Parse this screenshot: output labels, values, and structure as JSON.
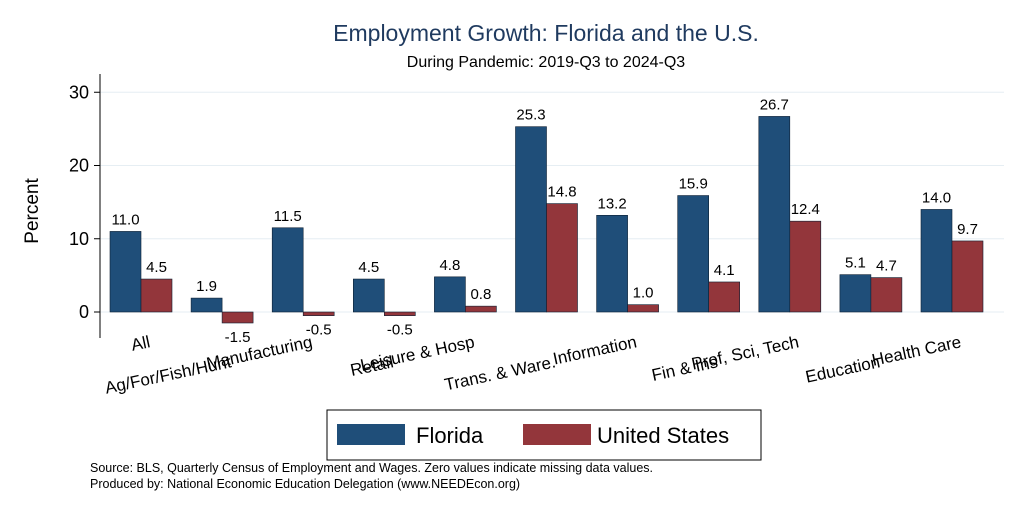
{
  "chart_data": {
    "type": "bar",
    "title": "Employment Growth: Florida and the U.S.",
    "subtitle": "During Pandemic: 2019-Q3 to 2024-Q3",
    "ylabel": "Percent",
    "xlabel": "",
    "ylim": [
      -3,
      32.5
    ],
    "yticks": [
      0,
      10,
      20,
      30
    ],
    "grid": true,
    "legend_position": "bottom",
    "categories": [
      "All",
      "Ag/For/Fish/Hunt",
      "Manufacturing",
      "Retail",
      "Leisure & Hosp",
      "Trans. & Ware.",
      "Information",
      "Fin & Ins",
      "Prof, Sci, Tech",
      "Education",
      "Health Care"
    ],
    "series": [
      {
        "name": "Florida",
        "color": "#1f4e79",
        "values": [
          11.0,
          1.9,
          11.5,
          4.5,
          4.8,
          25.3,
          13.2,
          15.9,
          26.7,
          5.1,
          14.0
        ],
        "labels": [
          "11.0",
          "1.9",
          "11.5",
          "4.5",
          "4.8",
          "25.3",
          "13.2",
          "15.9",
          "26.7",
          "5.1",
          "14.0"
        ]
      },
      {
        "name": "United States",
        "color": "#93363b",
        "values": [
          4.5,
          -1.5,
          -0.5,
          -0.5,
          0.8,
          14.8,
          1.0,
          4.1,
          12.4,
          4.7,
          9.7
        ],
        "labels": [
          "4.5",
          "-1.5",
          "-0.5",
          "-0.5",
          "0.8",
          "14.8",
          "1.0",
          "4.1",
          "12.4",
          "4.7",
          "9.7"
        ]
      }
    ]
  },
  "notes": {
    "source": "Source: BLS, Quarterly Census of Employment and Wages. Zero values indicate missing data values.",
    "produced": "Produced by: National Economic Education Delegation (www.NEEDEcon.org)"
  }
}
